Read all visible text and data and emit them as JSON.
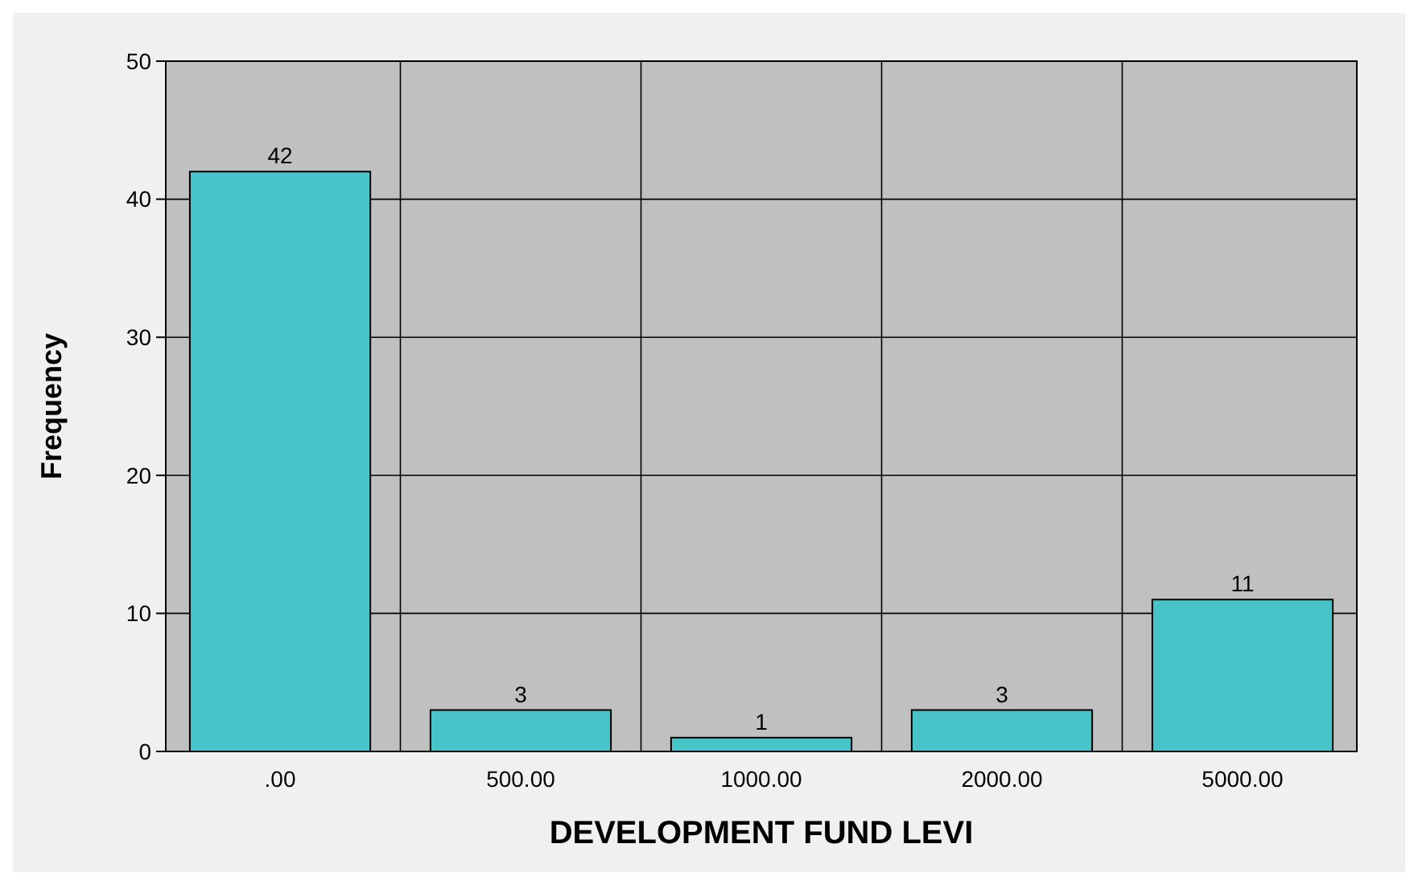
{
  "chart_data": {
    "type": "bar",
    "xlabel": "DEVELOPMENT FUND LEVI",
    "ylabel": "Frequency",
    "categories": [
      ".00",
      "500.00",
      "1000.00",
      "2000.00",
      "5000.00"
    ],
    "values": [
      42,
      3,
      1,
      3,
      11
    ],
    "color": "#48c4c8",
    "ylim": [
      0,
      50
    ],
    "yticks": [
      0,
      10,
      20,
      30,
      40,
      50
    ],
    "grid": true,
    "data_labels": true
  }
}
